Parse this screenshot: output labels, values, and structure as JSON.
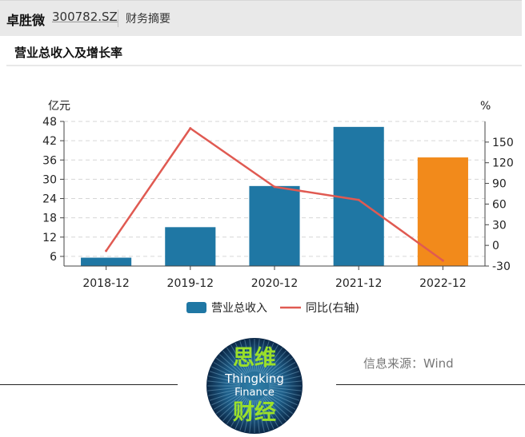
{
  "header": {
    "company": "卓胜微",
    "code": "300782.SZ",
    "section": "财务摘要"
  },
  "source": "信息来源：Wind",
  "logo": {
    "top_text": "思维",
    "line1": "Thingking",
    "line2": "Finance",
    "bottom_text": "财经"
  },
  "chart_data": {
    "type": "bar",
    "title": "营业总收入及增长率",
    "categories": [
      "2018-12",
      "2019-12",
      "2020-12",
      "2021-12",
      "2022-12"
    ],
    "series": [
      {
        "name": "营业总收入",
        "type": "bar",
        "axis": "left",
        "values": [
          5.6,
          15.1,
          27.9,
          46.3,
          36.8
        ],
        "color": "#1f77a4",
        "highlight_color": "#f28a1b",
        "highlight_index": 4
      },
      {
        "name": "同比(右轴)",
        "type": "line",
        "axis": "right",
        "values": [
          -8,
          170,
          85,
          66,
          -22
        ],
        "color": "#e05a52"
      }
    ],
    "yleft": {
      "unit": "亿元",
      "ticks": [
        6,
        12,
        18,
        24,
        30,
        36,
        42,
        48
      ],
      "ylim": [
        3,
        48
      ]
    },
    "yright": {
      "unit": "%",
      "ticks": [
        -30,
        0,
        30,
        60,
        90,
        120,
        150
      ],
      "ylim": [
        -30,
        180
      ]
    },
    "grid": true,
    "legend": "bottom-center"
  }
}
